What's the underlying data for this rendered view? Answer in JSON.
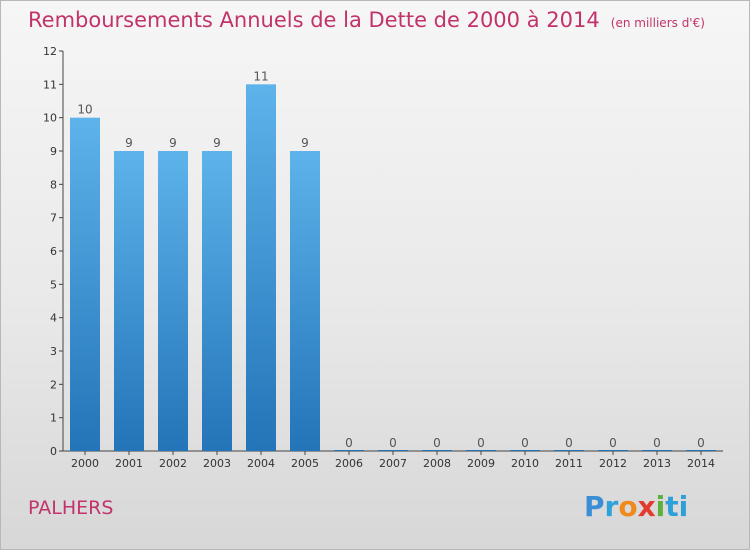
{
  "chart_data": {
    "type": "bar",
    "title": "Remboursements Annuels de la Dette de 2000 à 2014",
    "subtitle": "(en milliers d'€)",
    "categories": [
      "2000",
      "2001",
      "2002",
      "2003",
      "2004",
      "2005",
      "2006",
      "2007",
      "2008",
      "2009",
      "2010",
      "2011",
      "2012",
      "2013",
      "2014"
    ],
    "values": [
      10,
      9,
      9,
      9,
      11,
      9,
      0,
      0,
      0,
      0,
      0,
      0,
      0,
      0,
      0
    ],
    "ylim": [
      0,
      12
    ],
    "yticks": [
      0,
      1,
      2,
      3,
      4,
      5,
      6,
      7,
      8,
      9,
      10,
      11,
      12
    ],
    "grid": false,
    "bar_color": "#3a95d6"
  },
  "footer": {
    "commune": "PALHERS",
    "logo_letters": [
      "P",
      "r",
      "o",
      "x",
      "i",
      "ti"
    ]
  }
}
